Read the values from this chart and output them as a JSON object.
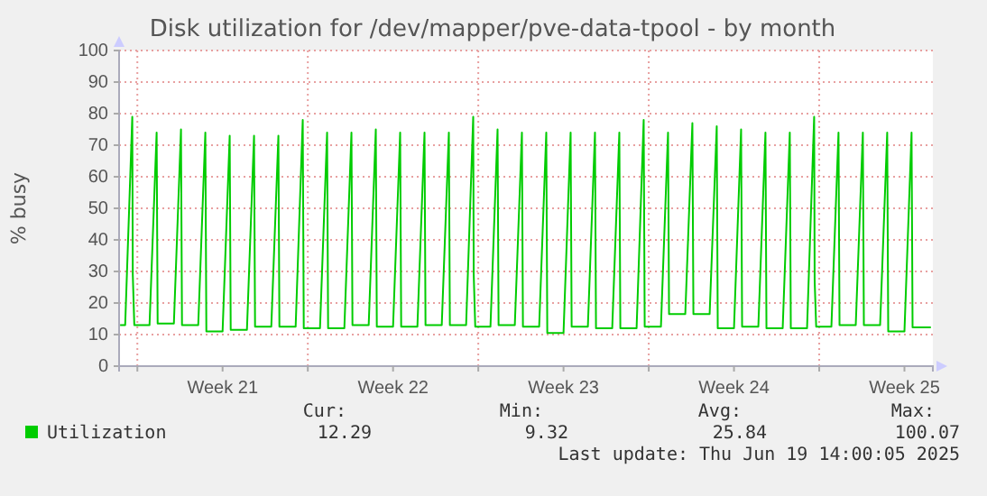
{
  "chart_data": {
    "type": "line",
    "title": "Disk utilization for /dev/mapper/pve-data-tpool - by month",
    "ylabel": "% busy",
    "x": [
      "2025-05-17T07:00",
      "2025-05-17T12:00",
      "2025-05-17T19:00",
      "2025-05-17T19:30",
      "2025-05-17T21:00",
      "2025-05-18T12:00",
      "2025-05-18T19:00",
      "2025-05-18T20:00",
      "2025-05-19T12:00",
      "2025-05-19T19:00",
      "2025-05-19T20:00",
      "2025-05-20T12:00",
      "2025-05-20T19:00",
      "2025-05-20T20:00",
      "2025-05-21T12:00",
      "2025-05-21T19:00",
      "2025-05-21T20:00",
      "2025-05-22T12:00",
      "2025-05-22T19:00",
      "2025-05-22T20:00",
      "2025-05-23T12:00",
      "2025-05-23T19:00",
      "2025-05-23T20:00",
      "2025-05-24T12:00",
      "2025-05-24T19:00",
      "2025-05-24T20:00",
      "2025-05-25T12:00",
      "2025-05-25T19:00",
      "2025-05-25T20:00",
      "2025-05-26T12:00",
      "2025-05-26T19:00",
      "2025-05-26T20:00",
      "2025-05-27T12:00",
      "2025-05-27T19:00",
      "2025-05-27T20:00",
      "2025-05-28T12:00",
      "2025-05-28T19:00",
      "2025-05-28T20:00",
      "2025-05-29T12:00",
      "2025-05-29T19:00",
      "2025-05-29T20:00",
      "2025-05-30T12:00",
      "2025-05-30T19:00",
      "2025-05-30T20:00",
      "2025-05-31T12:00",
      "2025-05-31T19:00",
      "2025-05-31T19:30",
      "2025-05-31T21:00",
      "2025-06-01T12:00",
      "2025-06-01T19:00",
      "2025-06-01T20:00",
      "2025-06-02T12:00",
      "2025-06-02T19:00",
      "2025-06-02T20:00",
      "2025-06-03T12:00",
      "2025-06-03T19:00",
      "2025-06-03T20:00",
      "2025-06-04T12:00",
      "2025-06-04T19:00",
      "2025-06-04T20:00",
      "2025-06-05T12:00",
      "2025-06-05T19:00",
      "2025-06-05T20:00",
      "2025-06-06T12:00",
      "2025-06-06T19:00",
      "2025-06-06T20:00",
      "2025-06-07T12:00",
      "2025-06-07T19:00",
      "2025-06-07T20:00",
      "2025-06-08T12:00",
      "2025-06-08T19:00",
      "2025-06-08T20:00",
      "2025-06-09T12:00",
      "2025-06-09T19:00",
      "2025-06-09T20:00",
      "2025-06-10T12:00",
      "2025-06-10T19:00",
      "2025-06-10T20:00",
      "2025-06-11T12:00",
      "2025-06-11T19:00",
      "2025-06-11T20:00",
      "2025-06-12T12:00",
      "2025-06-12T19:00",
      "2025-06-12T20:00",
      "2025-06-13T12:00",
      "2025-06-13T19:00",
      "2025-06-13T20:00",
      "2025-06-14T12:00",
      "2025-06-14T19:00",
      "2025-06-14T19:30",
      "2025-06-14T21:00",
      "2025-06-15T12:00",
      "2025-06-15T19:00",
      "2025-06-15T20:00",
      "2025-06-16T12:00",
      "2025-06-16T19:00",
      "2025-06-16T20:00",
      "2025-06-17T12:00",
      "2025-06-17T19:00",
      "2025-06-17T20:00",
      "2025-06-18T12:00",
      "2025-06-18T19:00",
      "2025-06-18T20:00",
      "2025-06-19T14:00"
    ],
    "series": [
      {
        "name": "Utilization",
        "color": "#00cc00",
        "values": [
          13,
          13,
          79,
          29,
          13,
          13,
          74,
          13.5,
          13.5,
          75,
          13,
          13,
          74,
          11,
          11,
          73,
          11.5,
          11.5,
          73,
          12.5,
          12.5,
          73,
          12.5,
          12.5,
          78,
          12,
          12,
          74,
          12,
          12,
          74,
          13,
          13,
          75,
          12.5,
          12.5,
          74,
          12.5,
          12.5,
          74,
          13,
          13,
          74,
          13,
          13,
          79,
          29,
          12.5,
          12.5,
          75,
          13,
          13,
          74,
          12.5,
          12.5,
          74,
          10.5,
          10.5,
          74,
          12.5,
          12.5,
          74,
          12,
          12,
          74,
          12,
          12,
          78,
          12.5,
          12.5,
          74,
          16.5,
          16.5,
          77,
          16.5,
          16.5,
          76,
          12,
          12,
          75,
          12.5,
          12.5,
          74,
          12,
          12,
          74,
          12,
          12,
          79,
          27,
          12.5,
          12.5,
          74,
          13,
          13,
          74,
          13,
          13,
          74,
          11,
          11,
          74,
          12.3,
          12.3
        ]
      }
    ],
    "xlim": [
      "2025-05-17T06:00",
      "2025-06-19T16:00"
    ],
    "xticks": [
      {
        "value": "2025-05-18T00:00",
        "label": null
      },
      {
        "value": "2025-05-21T12:00",
        "label": "Week 21"
      },
      {
        "value": "2025-05-25T00:00",
        "label": null
      },
      {
        "value": "2025-05-28T12:00",
        "label": "Week 22"
      },
      {
        "value": "2025-06-01T00:00",
        "label": null
      },
      {
        "value": "2025-06-04T12:00",
        "label": "Week 23"
      },
      {
        "value": "2025-06-08T00:00",
        "label": null
      },
      {
        "value": "2025-06-11T12:00",
        "label": "Week 24"
      },
      {
        "value": "2025-06-15T00:00",
        "label": null
      },
      {
        "value": "2025-06-18T12:00",
        "label": "Week 25"
      }
    ],
    "ylim": [
      0,
      100
    ],
    "yticks": [
      0,
      10,
      20,
      30,
      40,
      50,
      60,
      70,
      80,
      90,
      100
    ],
    "grid": true,
    "legend": "bottom left",
    "marker": "none",
    "line_style": "solid",
    "annotations": [
      "Cur:",
      "12.29",
      "Min:",
      "9.32",
      "Avg:",
      "25.84",
      "Max:",
      "100.07",
      "Last update: Thu Jun 19 14:00:05 2025"
    ]
  }
}
